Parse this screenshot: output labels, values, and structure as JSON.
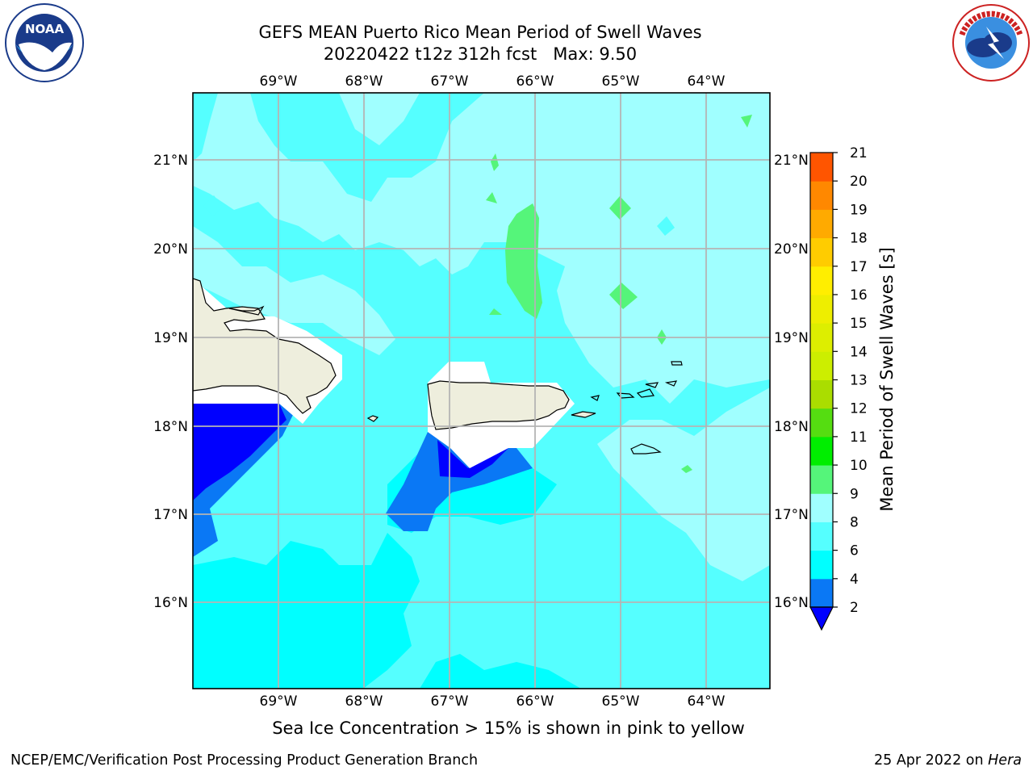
{
  "header": {
    "title_line1": "GEFS MEAN Puerto Rico Mean Period of Swell Waves",
    "title_line2": "20220422 t12z 312h fcst   Max: 9.50"
  },
  "logos": {
    "left": {
      "name": "noaa-logo",
      "text": "NOAA",
      "ring_text": "NATIONAL OCEANIC AND ATMOSPHERIC ADMINISTRATION · U.S. DEPARTMENT OF COMMERCE"
    },
    "right": {
      "name": "nws-logo",
      "ring_text": "NATIONAL WEATHER SERVICE"
    }
  },
  "map": {
    "lon_labels": [
      "69°W",
      "68°W",
      "67°W",
      "66°W",
      "65°W",
      "64°W"
    ],
    "lat_labels": [
      "21°N",
      "20°N",
      "19°N",
      "18°N",
      "17°N",
      "16°N"
    ],
    "fill_colors": {
      "c4_6": "#00ffff",
      "c6_8": "#55ffff",
      "c8_9": "#a0ffff",
      "c9_10": "#55f57a",
      "c2_4": "#0a78f5",
      "lt2": "#0000ff",
      "land": "#eeeedd"
    }
  },
  "colorbar": {
    "label": "Mean Period of Swell Waves [s]",
    "ticks": [
      "2",
      "4",
      "6",
      "8",
      "9",
      "10",
      "11",
      "12",
      "13",
      "14",
      "15",
      "16",
      "17",
      "18",
      "19",
      "20",
      "21"
    ],
    "colors": [
      "#0a78f5",
      "#00ffff",
      "#55ffff",
      "#a0ffff",
      "#55f57a",
      "#00ee00",
      "#55dd11",
      "#aadd00",
      "#ccee00",
      "#ddee00",
      "#eeee00",
      "#ffee00",
      "#ffcc00",
      "#ffaa00",
      "#ff8800",
      "#ff5500",
      "#ff2200",
      "#ff0000"
    ],
    "under_color": "#0000ff"
  },
  "caption": "Sea Ice Concentration > 15% is shown in pink to yellow",
  "footer": {
    "left": "NCEP/EMC/Verification Post Processing Product Generation Branch",
    "right_prefix": "25 Apr 2022 on ",
    "right_host": "Hera"
  }
}
